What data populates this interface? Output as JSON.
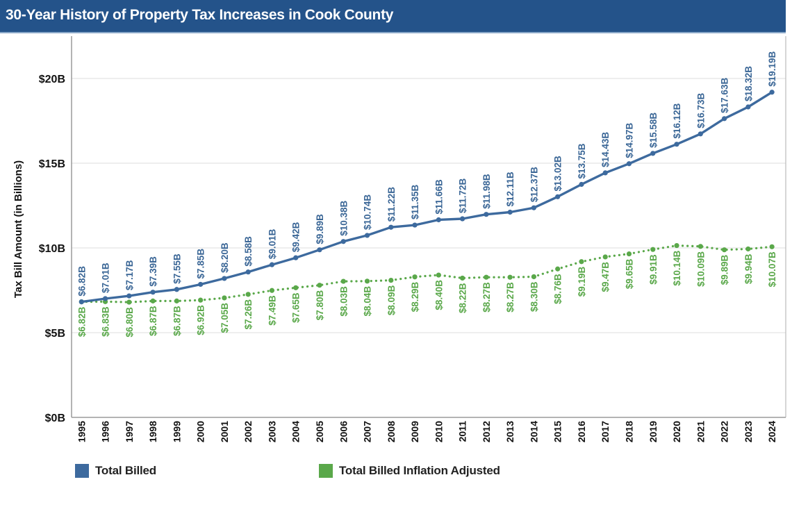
{
  "chart_data": {
    "type": "line",
    "title": "30-Year History of Property Tax Increases in Cook County",
    "xlabel": "",
    "ylabel": "Tax Bill Amount (in Billions)",
    "ylim": [
      0,
      22.5
    ],
    "yticks": [
      0,
      5,
      10,
      15,
      20
    ],
    "ytick_labels": [
      "$0B",
      "$5B",
      "$10B",
      "$15B",
      "$20B"
    ],
    "grid": true,
    "legend_position": "bottom",
    "x": [
      "1995",
      "1996",
      "1997",
      "1998",
      "1999",
      "2000",
      "2001",
      "2002",
      "2003",
      "2004",
      "2005",
      "2006",
      "2007",
      "2008",
      "2009",
      "2010",
      "2011",
      "2012",
      "2013",
      "2014",
      "2015",
      "2016",
      "2017",
      "2018",
      "2019",
      "2020",
      "2021",
      "2022",
      "2023",
      "2024"
    ],
    "series": [
      {
        "name": "Total Billed",
        "color": "#3d6a9e",
        "style": "solid",
        "values": [
          6.82,
          7.01,
          7.17,
          7.39,
          7.55,
          7.85,
          8.2,
          8.58,
          9.01,
          9.42,
          9.89,
          10.38,
          10.74,
          11.22,
          11.35,
          11.66,
          11.72,
          11.98,
          12.11,
          12.37,
          13.02,
          13.75,
          14.43,
          14.97,
          15.58,
          16.12,
          16.73,
          17.63,
          18.32,
          19.19
        ],
        "labels": [
          "$6.82B",
          "$7.01B",
          "$7.17B",
          "$7.39B",
          "$7.55B",
          "$7.85B",
          "$8.20B",
          "$8.58B",
          "$9.01B",
          "$9.42B",
          "$9.89B",
          "$10.38B",
          "$10.74B",
          "$11.22B",
          "$11.35B",
          "$11.66B",
          "$11.72B",
          "$11.98B",
          "$12.11B",
          "$12.37B",
          "$13.02B",
          "$13.75B",
          "$14.43B",
          "$14.97B",
          "$15.58B",
          "$16.12B",
          "$16.73B",
          "$17.63B",
          "$18.32B",
          "$19.19B"
        ]
      },
      {
        "name": "Total Billed Inflation Adjusted",
        "color": "#5aa84a",
        "style": "dotted",
        "values": [
          6.82,
          6.83,
          6.8,
          6.87,
          6.87,
          6.92,
          7.05,
          7.26,
          7.49,
          7.65,
          7.8,
          8.03,
          8.04,
          8.09,
          8.29,
          8.4,
          8.22,
          8.27,
          8.27,
          8.3,
          8.76,
          9.19,
          9.47,
          9.65,
          9.91,
          10.14,
          10.09,
          9.89,
          9.94,
          10.07
        ],
        "labels": [
          "$6.82B",
          "$6.83B",
          "$6.80B",
          "$6.87B",
          "$6.87B",
          "$6.92B",
          "$7.05B",
          "$7.26B",
          "$7.49B",
          "$7.65B",
          "$7.80B",
          "$8.03B",
          "$8.04B",
          "$8.09B",
          "$8.29B",
          "$8.40B",
          "$8.22B",
          "$8.27B",
          "$8.27B",
          "$8.30B",
          "$8.76B",
          "$9.19B",
          "$9.47B",
          "$9.65B",
          "$9.91B",
          "$10.14B",
          "$10.09B",
          "$9.89B",
          "$9.94B",
          "$10.07B"
        ]
      }
    ]
  }
}
